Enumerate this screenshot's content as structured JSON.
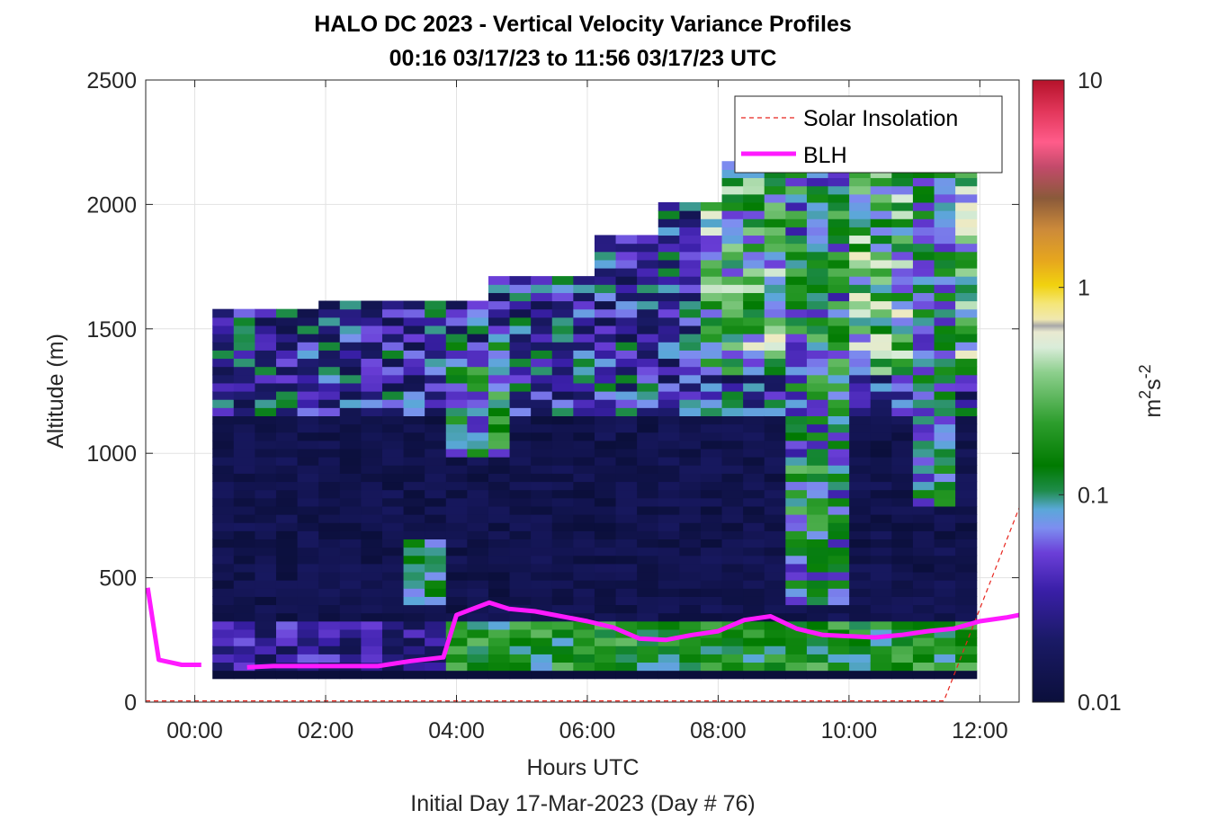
{
  "chart_data": {
    "type": "heatmap",
    "title_line1": "HALO DC 2023 - Vertical Velocity Variance Profiles",
    "title_line2": "00:16 03/17/23 to 11:56 03/17/23  UTC",
    "xlabel": "Hours UTC",
    "xlabel2": "Initial Day 17-Mar-2023 (Day # 76)",
    "ylabel": "Altitude (m)",
    "colorbar_label_base": "m",
    "colorbar_label_sup1": "2",
    "colorbar_label_mid": "s",
    "colorbar_label_sup2": "-2",
    "xlim": [
      -0.75,
      12.6
    ],
    "ylim": [
      0,
      2500
    ],
    "x_ticks": [
      0,
      2,
      4,
      6,
      8,
      10,
      12
    ],
    "x_tick_labels": [
      "00:00",
      "02:00",
      "04:00",
      "06:00",
      "08:00",
      "10:00",
      "12:00"
    ],
    "y_ticks": [
      0,
      500,
      1000,
      1500,
      2000,
      2500
    ],
    "y_tick_labels": [
      "0",
      "500",
      "1000",
      "1500",
      "2000",
      "2500"
    ],
    "colorbar_scale": "log",
    "colorbar_range": [
      0.01,
      10
    ],
    "colorbar_ticks": [
      0.01,
      0.1,
      1,
      10
    ],
    "colorbar_tick_labels": [
      "0.01",
      "0.1",
      "1",
      "10"
    ],
    "grid": true,
    "legend_position": "top-right",
    "legend": [
      {
        "label": "Solar Insolation",
        "color": "#e8251e",
        "style": "dashed"
      },
      {
        "label": "BLH",
        "color": "#ff1aff",
        "style": "solid"
      }
    ],
    "blh_series": {
      "x": [
        -0.72,
        -0.55,
        -0.2,
        0.1,
        0.5,
        0.8,
        1.2,
        2.0,
        2.8,
        3.3,
        3.8,
        4.0,
        4.2,
        4.5,
        4.8,
        5.2,
        5.6,
        6.0,
        6.4,
        6.8,
        7.2,
        7.6,
        8.0,
        8.4,
        8.8,
        9.2,
        9.6,
        10.0,
        10.4,
        10.8,
        11.2,
        11.6,
        12.0,
        12.4,
        12.6
      ],
      "y": [
        460,
        170,
        150,
        150,
        null,
        140,
        145,
        145,
        145,
        165,
        180,
        350,
        370,
        400,
        375,
        365,
        345,
        325,
        300,
        255,
        250,
        270,
        285,
        330,
        345,
        295,
        270,
        265,
        260,
        270,
        285,
        295,
        325,
        340,
        350
      ]
    },
    "solar_series": {
      "x": [
        -0.75,
        11.45,
        12.6
      ],
      "y": [
        5,
        5,
        780
      ]
    },
    "heatmap_x_range": [
      0.27,
      11.95
    ],
    "heatmap_y_range": [
      95,
      2500
    ],
    "heatmap_columns": 36,
    "heatmap_bin_height": 33,
    "heatmap_description_values": "log10 variance per cell, stored in script"
  }
}
